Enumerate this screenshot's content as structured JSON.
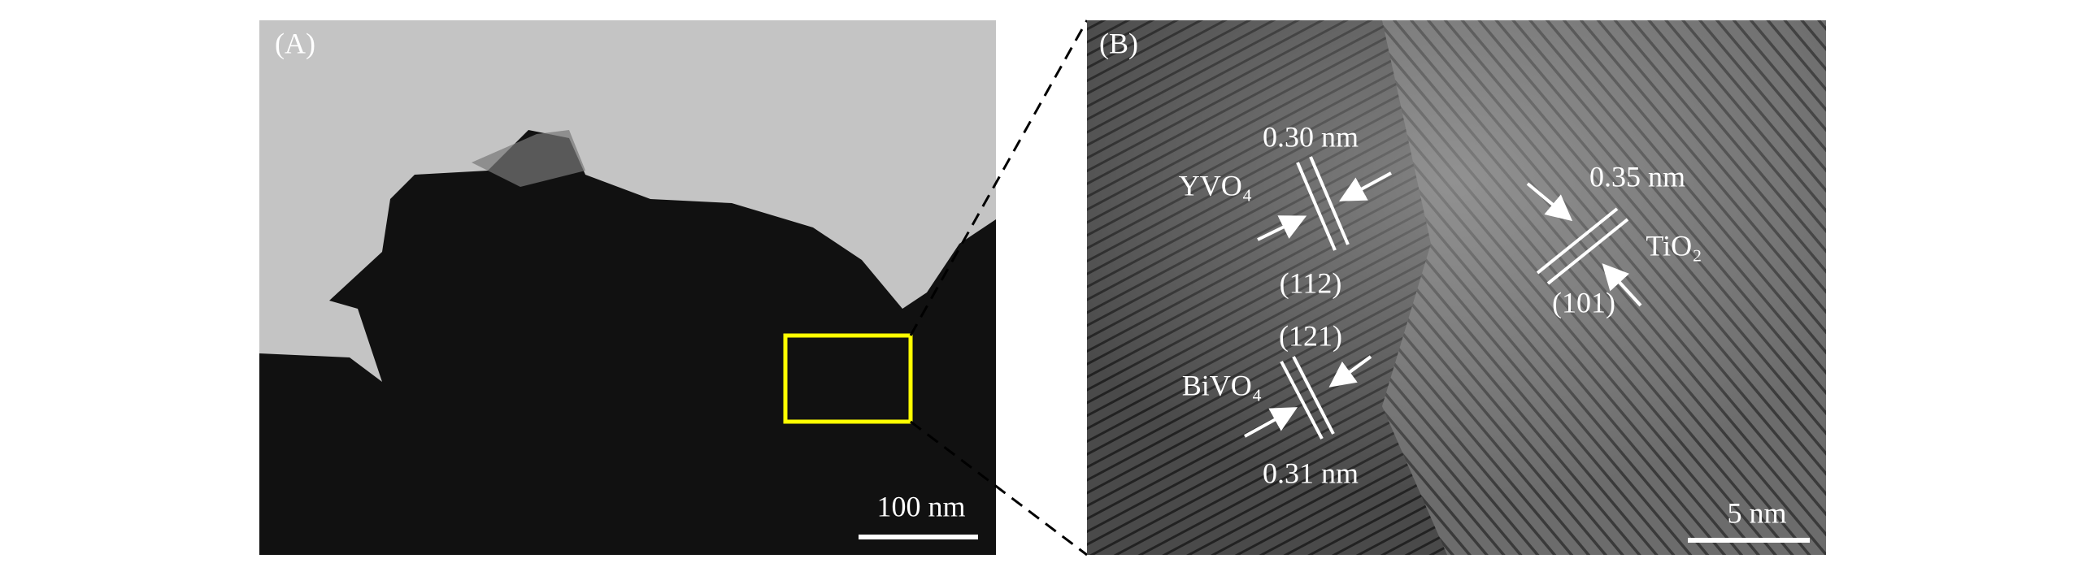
{
  "panel_a": {
    "label": "(A)",
    "scale_bar": "100 nm"
  },
  "panel_b": {
    "label": "(B)",
    "scale_bar": "5 nm",
    "annotations": {
      "yvo4_spacing": "0.30 nm",
      "yvo4": "YVO₄",
      "yvo4_plane": "(112)",
      "bivo4_plane": "(121)",
      "bivo4": "BiVO₄",
      "bivo4_spacing": "0.31 nm",
      "tio2_spacing": "0.35 nm",
      "tio2": "TiO₂",
      "tio2_plane": "(101)"
    }
  }
}
